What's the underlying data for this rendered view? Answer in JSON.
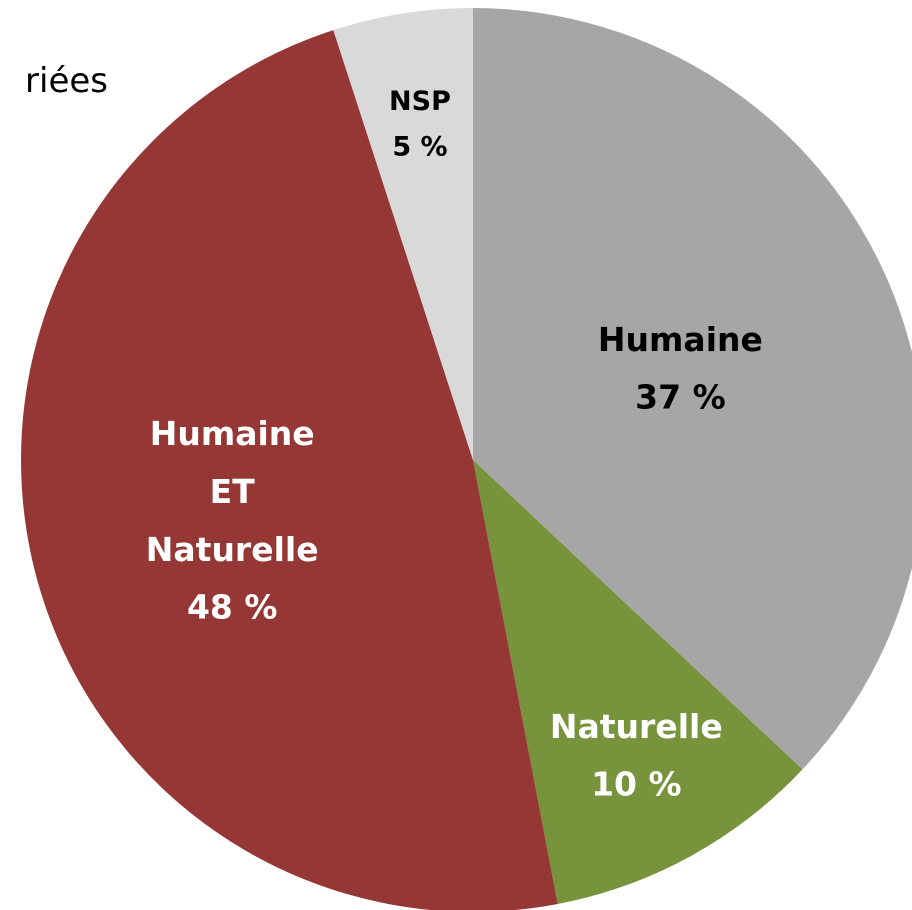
{
  "chart_data": {
    "type": "pie",
    "title": "riées",
    "categories": [
      "Humaine",
      "Naturelle",
      "Humaine ET Naturelle",
      "NSP"
    ],
    "values": [
      37,
      10,
      48,
      5
    ],
    "value_labels": [
      "37 %",
      "10 %",
      "48 %",
      "5 %"
    ],
    "colors": [
      "#a6a6a6",
      "#77933c",
      "#953735",
      "#d9d9d9"
    ],
    "label_colors": [
      "#000000",
      "#ffffff",
      "#ffffff",
      "#000000"
    ]
  }
}
